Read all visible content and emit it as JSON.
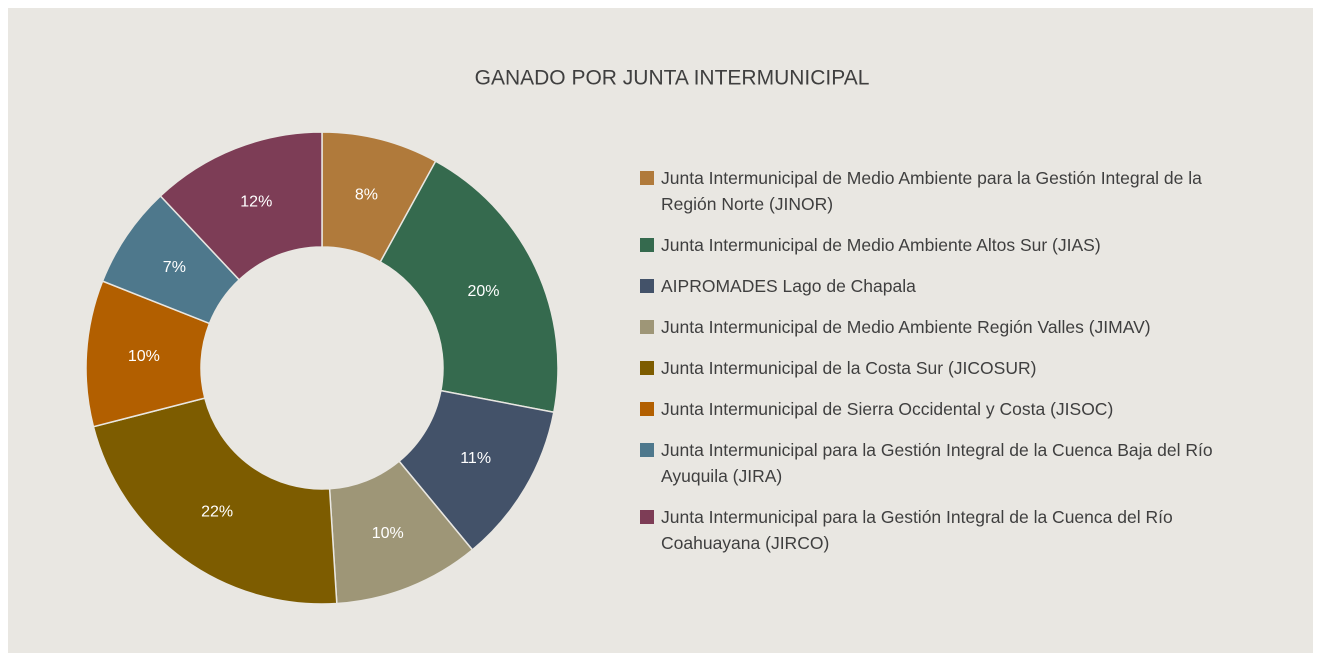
{
  "chart_data": {
    "type": "pie",
    "title": "GANADO POR JUNTA INTERMUNICIPAL",
    "categories": [
      "Junta Intermunicipal de Medio Ambiente para la Gestión Integral de la Región Norte (JINOR)",
      "Junta Intermunicipal de Medio Ambiente Altos Sur (JIAS)",
      "AIPROMADES Lago de Chapala",
      "Junta Intermunicipal de Medio Ambiente Región Valles (JIMAV)",
      "Junta Intermunicipal de la Costa Sur (JICOSUR)",
      "Junta Intermunicipal de Sierra Occidental y Costa (JISOC)",
      "Junta Intermunicipal para la Gestión Integral de la Cuenca Baja del Río Ayuquila (JIRA)",
      "Junta Intermunicipal para la Gestión Integral de la Cuenca del Río Coahuayana (JIRCO)"
    ],
    "values": [
      8,
      20,
      11,
      10,
      22,
      10,
      7,
      12
    ],
    "value_labels": [
      "8%",
      "20%",
      "11%",
      "10%",
      "22%",
      "10%",
      "7%",
      "12%"
    ],
    "colors": [
      "#b07a3b",
      "#356a4e",
      "#435269",
      "#9e9677",
      "#7d5c00",
      "#b25f00",
      "#4e788c",
      "#7d3d56"
    ],
    "legend": "right"
  }
}
